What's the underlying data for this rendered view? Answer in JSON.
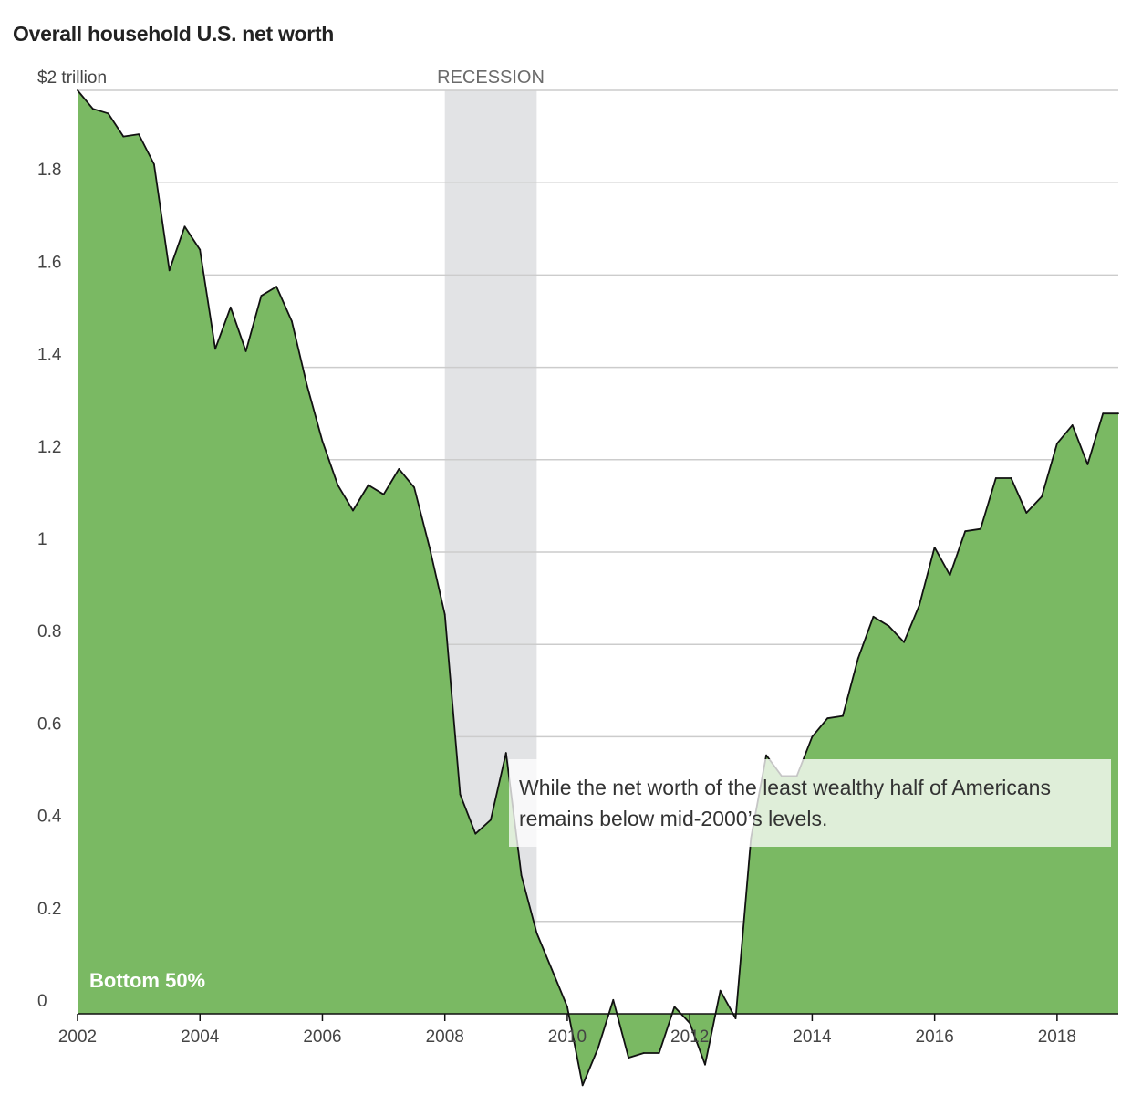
{
  "chart_data": {
    "type": "area",
    "title": "Overall household U.S. net worth",
    "ylabel": "",
    "xlabel": "",
    "ylim": [
      0,
      2
    ],
    "xlim": [
      2002,
      2019
    ],
    "grid": true,
    "y_ticks": [
      0,
      0.2,
      0.4,
      0.6,
      0.8,
      1.0,
      1.2,
      1.4,
      1.6,
      1.8,
      2.0
    ],
    "y_tick_labels": [
      "0",
      "0.2",
      "0.4",
      "0.6",
      "0.8",
      "1",
      "1.2",
      "1.4",
      "1.6",
      "1.8",
      "$2 trillion"
    ],
    "x_ticks": [
      2002,
      2004,
      2006,
      2008,
      2010,
      2012,
      2014,
      2016,
      2018
    ],
    "x_tick_labels": [
      "2002",
      "2004",
      "2006",
      "2008",
      "2010",
      "2012",
      "2014",
      "2016",
      "2018"
    ],
    "recession": {
      "start": 2008.0,
      "end": 2009.5,
      "label": "RECESSION"
    },
    "annotation": "While the net worth of the least wealthy half of Americans remains below mid-2000’s levels.",
    "colors": {
      "area": "#7ab963",
      "line": "#111111",
      "recession": "#e2e3e5",
      "grid": "#cccccc"
    },
    "series": [
      {
        "name": "Bottom 50%",
        "x": [
          2002.0,
          2002.25,
          2002.5,
          2002.75,
          2003.0,
          2003.25,
          2003.5,
          2003.75,
          2004.0,
          2004.25,
          2004.5,
          2004.75,
          2005.0,
          2005.25,
          2005.5,
          2005.75,
          2006.0,
          2006.25,
          2006.5,
          2006.75,
          2007.0,
          2007.25,
          2007.5,
          2007.75,
          2008.0,
          2008.25,
          2008.5,
          2008.75,
          2009.0,
          2009.25,
          2009.5,
          2009.75,
          2010.0,
          2010.25,
          2010.5,
          2010.75,
          2011.0,
          2011.25,
          2011.5,
          2011.75,
          2012.0,
          2012.25,
          2012.5,
          2012.75,
          2013.0,
          2013.25,
          2013.5,
          2013.75,
          2014.0,
          2014.25,
          2014.5,
          2014.75,
          2015.0,
          2015.25,
          2015.5,
          2015.75,
          2016.0,
          2016.25,
          2016.5,
          2016.75,
          2017.0,
          2017.25,
          2017.5,
          2017.75,
          2018.0,
          2018.25,
          2018.5,
          2018.75,
          2019.0
        ],
        "values": [
          2.0,
          1.96,
          1.95,
          1.9,
          1.905,
          1.84,
          1.61,
          1.705,
          1.655,
          1.44,
          1.53,
          1.435,
          1.555,
          1.575,
          1.5,
          1.36,
          1.24,
          1.145,
          1.09,
          1.145,
          1.125,
          1.18,
          1.14,
          1.01,
          0.865,
          0.475,
          0.39,
          0.42,
          0.565,
          0.3,
          0.175,
          0.095,
          0.015,
          -0.155,
          -0.075,
          0.03,
          -0.095,
          -0.085,
          -0.085,
          0.015,
          -0.02,
          -0.11,
          0.05,
          -0.01,
          0.38,
          0.56,
          0.515,
          0.515,
          0.6,
          0.64,
          0.645,
          0.77,
          0.86,
          0.84,
          0.805,
          0.885,
          1.01,
          0.95,
          1.045,
          1.05,
          1.16,
          1.16,
          1.085,
          1.12,
          1.235,
          1.275,
          1.19,
          1.3,
          1.3
        ]
      }
    ]
  }
}
